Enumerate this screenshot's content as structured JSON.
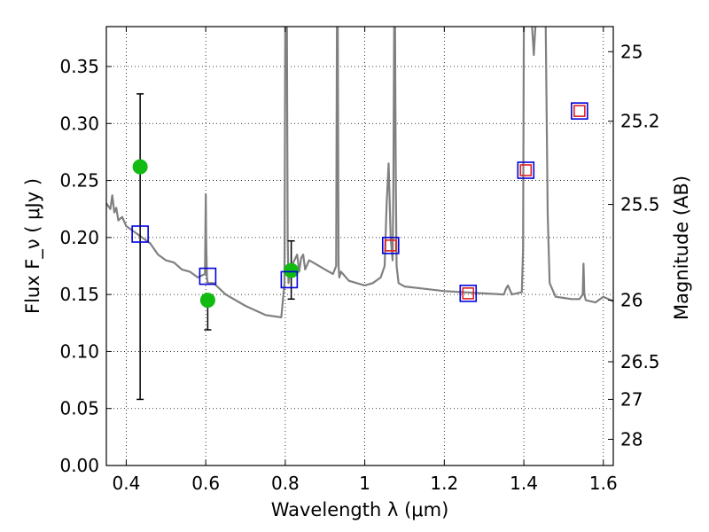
{
  "chart_data": {
    "type": "scatter",
    "xlabel": "Wavelength  λ (μm)",
    "ylabel": "Flux  F_ν  ( μJy )",
    "y2label": "Magnitude (AB)",
    "xlim": [
      0.35,
      1.625
    ],
    "ylim": [
      0.0,
      0.385
    ],
    "grid": true,
    "x_ticks": [
      0.4,
      0.6,
      0.8,
      1.0,
      1.2,
      1.4,
      1.6
    ],
    "x_tick_labels": [
      "0.4",
      "0.6",
      "0.8",
      "1",
      "1.2",
      "1.4",
      "1.6"
    ],
    "y_ticks": [
      0.0,
      0.05,
      0.1,
      0.15,
      0.2,
      0.25,
      0.3,
      0.35
    ],
    "y_tick_labels": [
      "0.00",
      "0.05",
      "0.10",
      "0.15",
      "0.20",
      "0.25",
      "0.30",
      "0.35"
    ],
    "y2_ticks": [
      {
        "label": "25",
        "flux": 0.363
      },
      {
        "label": "25.2",
        "flux": 0.302
      },
      {
        "label": "25.5",
        "flux": 0.229
      },
      {
        "label": "26",
        "flux": 0.145
      },
      {
        "label": "26.5",
        "flux": 0.091
      },
      {
        "label": "27",
        "flux": 0.058
      },
      {
        "label": "28",
        "flux": 0.023
      }
    ],
    "series": [
      {
        "type": "line",
        "color": "#808080",
        "x": [
          0.35,
          0.36,
          0.365,
          0.37,
          0.375,
          0.38,
          0.39,
          0.4,
          0.42,
          0.44,
          0.46,
          0.48,
          0.5,
          0.52,
          0.54,
          0.56,
          0.58,
          0.598,
          0.6,
          0.601,
          0.603,
          0.605,
          0.62,
          0.65,
          0.7,
          0.75,
          0.79,
          0.798,
          0.8,
          0.802,
          0.804,
          0.806,
          0.808,
          0.81,
          0.82,
          0.83,
          0.835,
          0.84,
          0.845,
          0.85,
          0.86,
          0.87,
          0.88,
          0.9,
          0.92,
          0.928,
          0.93,
          0.932,
          0.934,
          0.936,
          0.94,
          0.96,
          0.98,
          1.0,
          1.02,
          1.04,
          1.05,
          1.055,
          1.06,
          1.065,
          1.07,
          1.072,
          1.074,
          1.076,
          1.078,
          1.08,
          1.085,
          1.1,
          1.15,
          1.2,
          1.25,
          1.3,
          1.35,
          1.355,
          1.36,
          1.37,
          1.395,
          1.398,
          1.4,
          1.402,
          1.404,
          1.41,
          1.415,
          1.42,
          1.425,
          1.43,
          1.44,
          1.45,
          1.455,
          1.46,
          1.465,
          1.48,
          1.5,
          1.52,
          1.54,
          1.548,
          1.55,
          1.552,
          1.556,
          1.58,
          1.6,
          1.625
        ],
        "y": [
          0.23,
          0.225,
          0.237,
          0.222,
          0.226,
          0.215,
          0.218,
          0.21,
          0.205,
          0.2,
          0.195,
          0.185,
          0.18,
          0.178,
          0.172,
          0.17,
          0.165,
          0.168,
          0.238,
          0.2,
          0.165,
          0.16,
          0.16,
          0.15,
          0.14,
          0.132,
          0.13,
          0.16,
          0.39,
          0.39,
          0.39,
          0.2,
          0.16,
          0.165,
          0.178,
          0.185,
          0.17,
          0.182,
          0.185,
          0.172,
          0.18,
          0.178,
          0.176,
          0.172,
          0.168,
          0.175,
          0.39,
          0.39,
          0.175,
          0.165,
          0.17,
          0.162,
          0.16,
          0.158,
          0.16,
          0.165,
          0.175,
          0.23,
          0.265,
          0.2,
          0.18,
          0.25,
          0.39,
          0.39,
          0.25,
          0.175,
          0.16,
          0.157,
          0.155,
          0.153,
          0.152,
          0.151,
          0.15,
          0.155,
          0.158,
          0.15,
          0.152,
          0.19,
          0.39,
          0.39,
          0.39,
          0.39,
          0.39,
          0.39,
          0.36,
          0.39,
          0.39,
          0.39,
          0.39,
          0.22,
          0.16,
          0.148,
          0.147,
          0.146,
          0.146,
          0.15,
          0.177,
          0.15,
          0.145,
          0.143,
          0.148,
          0.144
        ]
      },
      {
        "type": "scatter",
        "marker": "circle",
        "color": "#11bb11",
        "x": [
          0.435,
          0.605,
          0.815
        ],
        "y": [
          0.262,
          0.145,
          0.171
        ],
        "yerr_low": [
          0.058,
          0.119,
          0.146
        ],
        "yerr_high": [
          0.326,
          0.145,
          0.197
        ]
      },
      {
        "type": "scatter",
        "marker": "square",
        "color": "#0000dd",
        "x": [
          0.435,
          0.605,
          0.81,
          1.065,
          1.26,
          1.405,
          1.54
        ],
        "y": [
          0.203,
          0.166,
          0.163,
          0.193,
          0.151,
          0.259,
          0.311
        ]
      },
      {
        "type": "scatter",
        "marker": "square",
        "color": "#dd2222",
        "x": [
          1.065,
          1.26,
          1.405,
          1.54
        ],
        "y": [
          0.193,
          0.151,
          0.259,
          0.311
        ]
      }
    ]
  }
}
